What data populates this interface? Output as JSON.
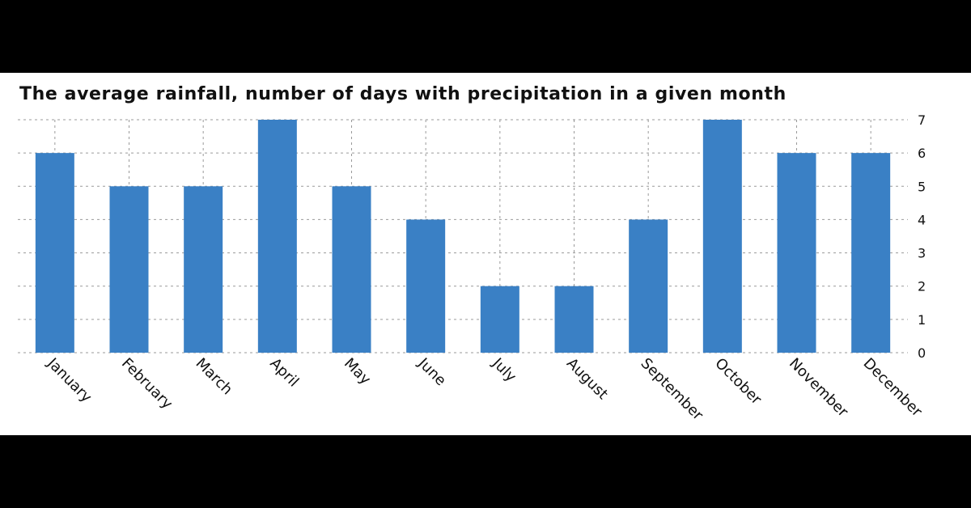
{
  "chart_data": {
    "type": "bar",
    "title": "The average rainfall, number of days with precipitation in a given month",
    "categories": [
      "January",
      "February",
      "March",
      "April",
      "May",
      "June",
      "July",
      "August",
      "September",
      "October",
      "November",
      "December"
    ],
    "series": [
      {
        "values": [
          6,
          5,
          5,
          7,
          5,
          4,
          2,
          2,
          4,
          7,
          6,
          6
        ]
      }
    ],
    "ylim": [
      0,
      7
    ],
    "yticks": [
      0,
      1,
      2,
      3,
      4,
      5,
      6,
      7
    ],
    "y_axis_side": "right",
    "grid": true,
    "legend": "none",
    "bar_color": "#3a80c5"
  }
}
